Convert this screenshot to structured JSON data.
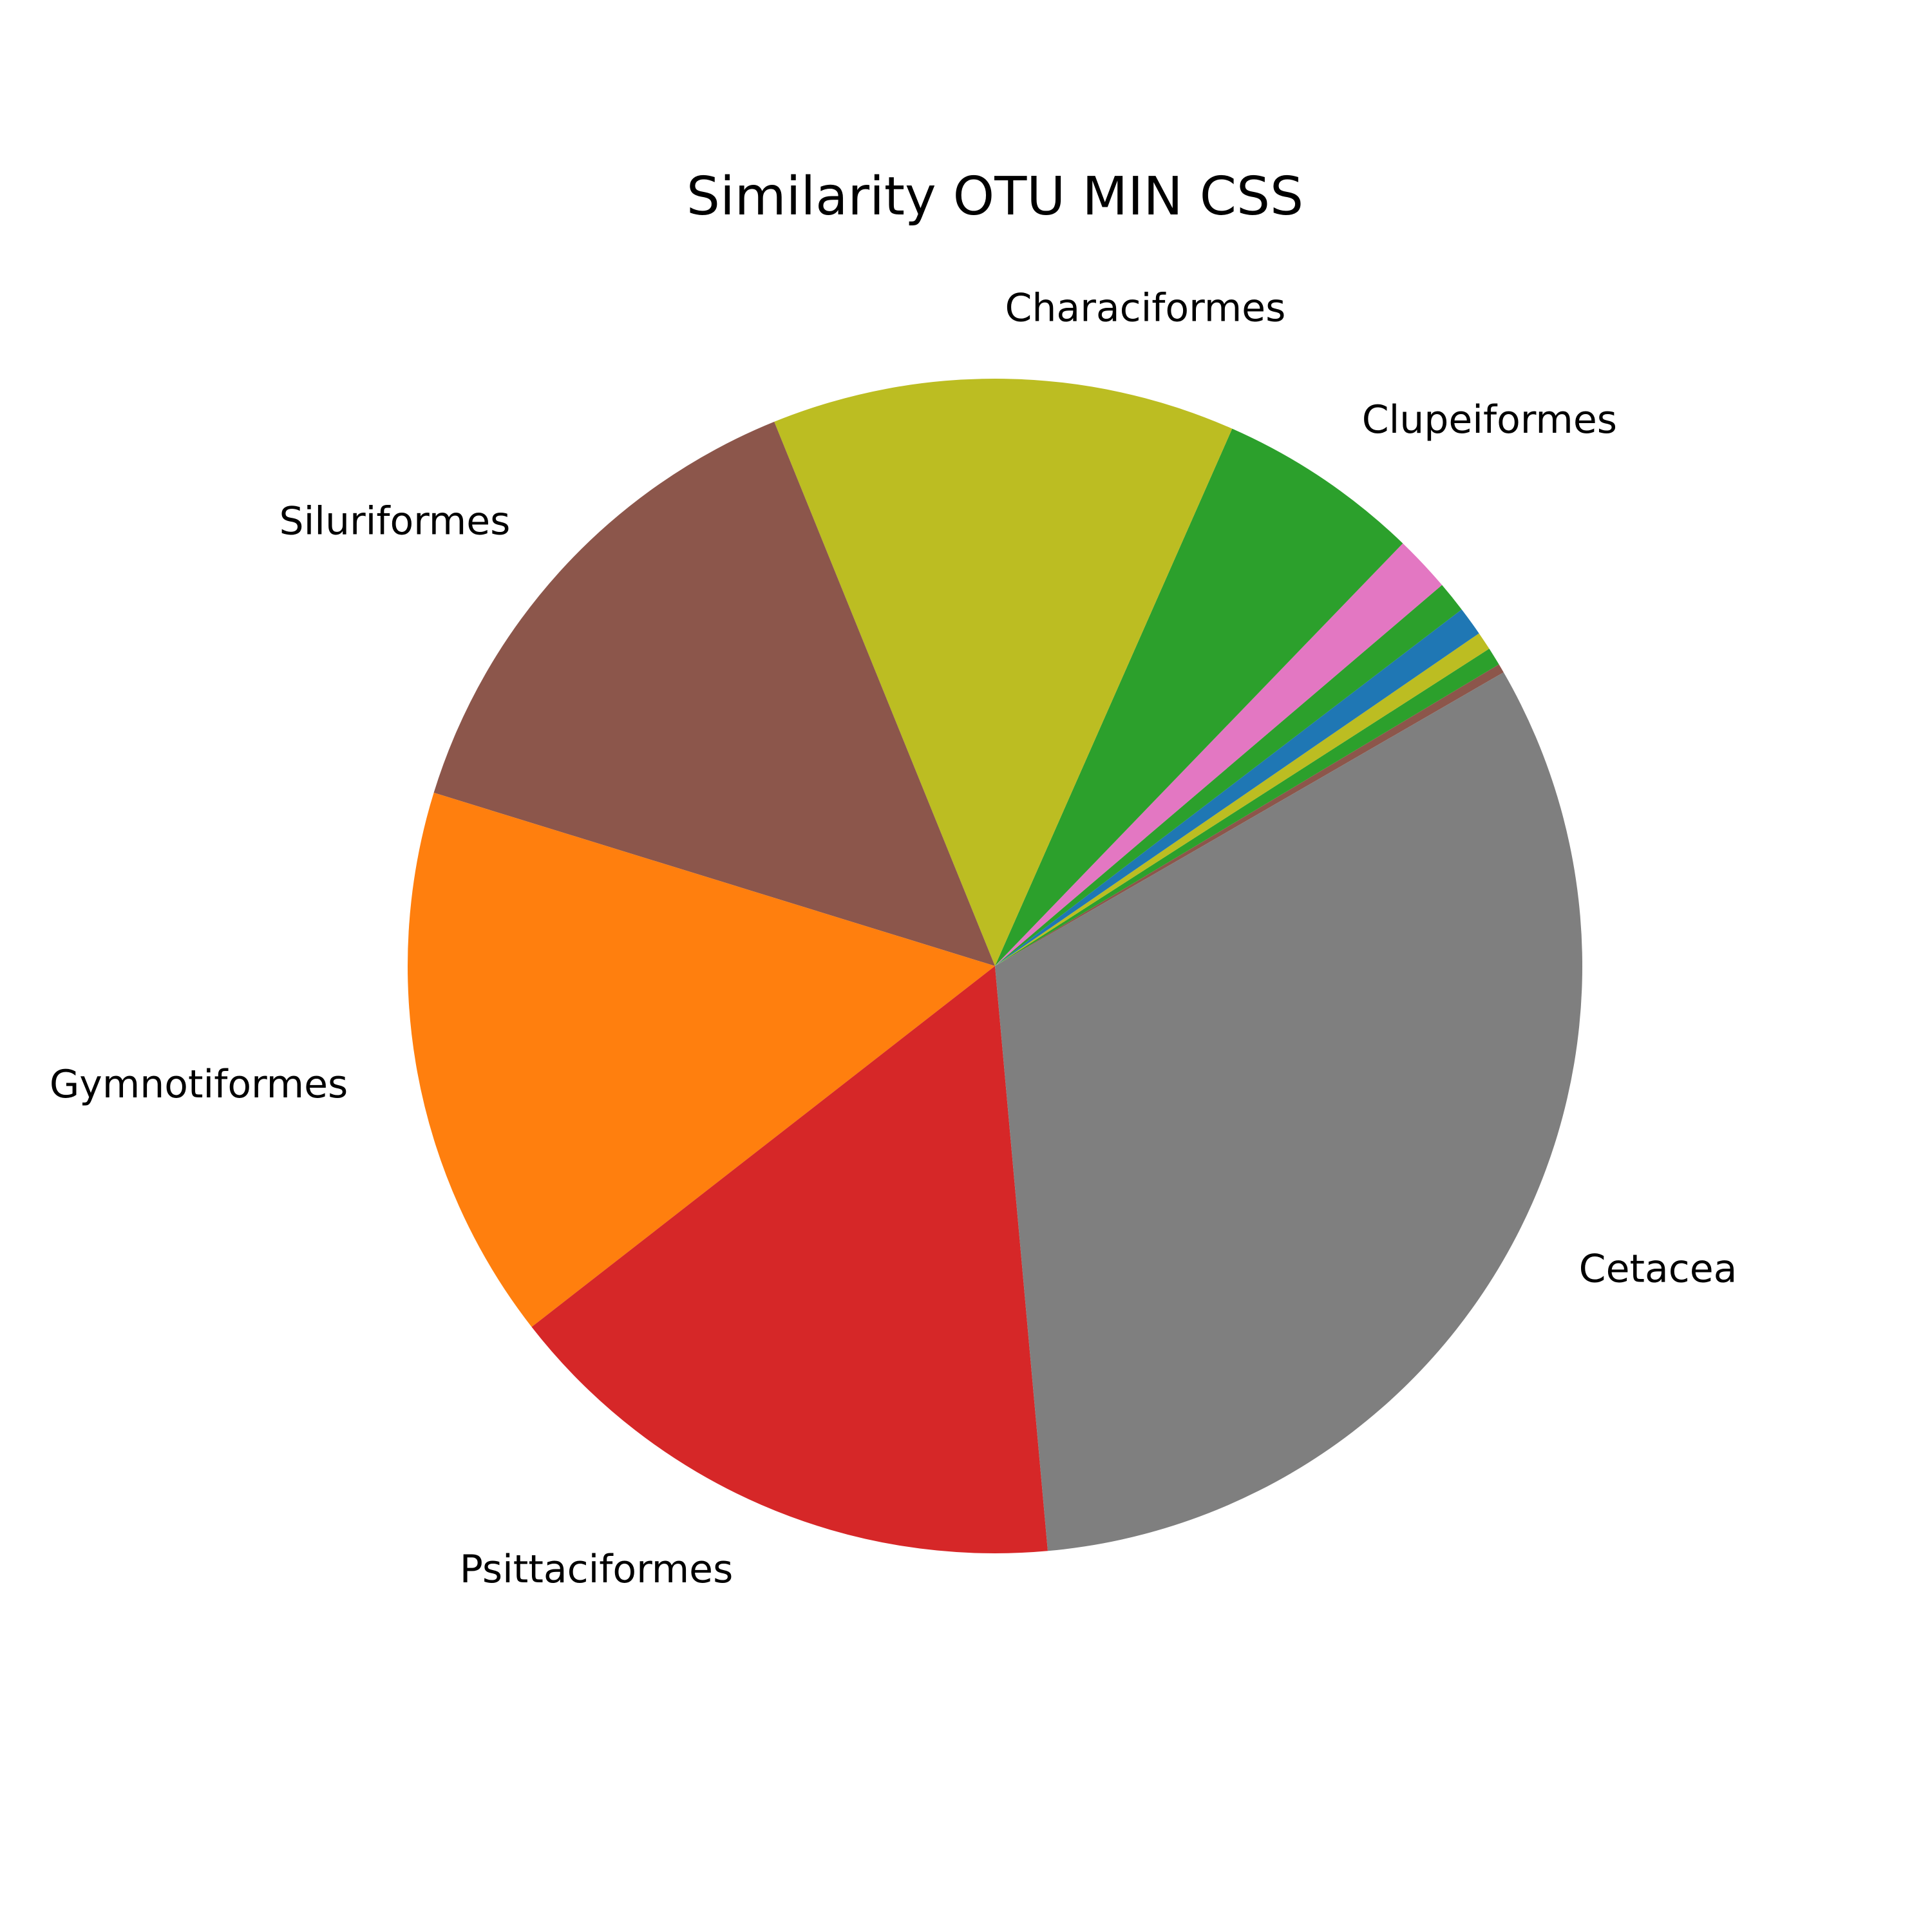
{
  "chart_data": {
    "type": "pie",
    "title": "Similarity OTU MIN CSS",
    "start_angle_deg": 30,
    "direction": "counterclockwise",
    "slices": [
      {
        "label": "",
        "value": 0.25,
        "color": "#8c564b"
      },
      {
        "label": "",
        "value": 0.5,
        "color": "#2ca02c"
      },
      {
        "label": "",
        "value": 0.5,
        "color": "#bcbd22"
      },
      {
        "label": "",
        "value": 0.8,
        "color": "#1f77b4"
      },
      {
        "label": "",
        "value": 0.85,
        "color": "#2ca02c"
      },
      {
        "label": "",
        "value": 1.55,
        "color": "#e377c2"
      },
      {
        "label": "Clupeiformes",
        "value": 5.6,
        "color": "#2ca02c"
      },
      {
        "label": "Characiformes",
        "value": 12.75,
        "color": "#bcbd22"
      },
      {
        "label": "Siluriformes",
        "value": 14.1,
        "color": "#8c564b"
      },
      {
        "label": "Gymnotiformes",
        "value": 15.3,
        "color": "#ff7f0e"
      },
      {
        "label": "Psittaciformes",
        "value": 15.9,
        "color": "#d62728"
      },
      {
        "label": "Cetacea",
        "value": 31.9,
        "color": "#7f7f7f"
      }
    ]
  }
}
